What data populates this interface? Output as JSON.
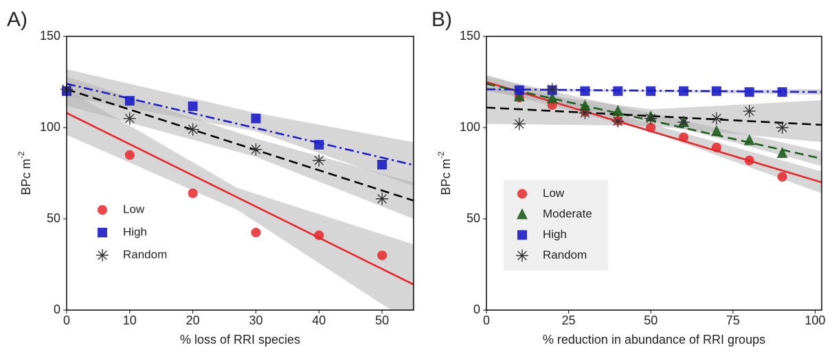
{
  "chart_data": [
    {
      "type": "scatter",
      "panel_label": "A)",
      "xlabel": "% loss of RRI species",
      "ylabel": "BPc m",
      "ylabel_sup": "-2",
      "xlim": [
        0,
        55
      ],
      "ylim": [
        0,
        150
      ],
      "xticks": [
        0,
        10,
        20,
        30,
        40,
        50
      ],
      "yticks": [
        0,
        50,
        100,
        150
      ],
      "legend": "lower left",
      "series": [
        {
          "name": "Low",
          "color": "#e8262a",
          "marker": "circle",
          "x": [
            10,
            20,
            30,
            40,
            50
          ],
          "values": [
            85,
            64,
            42.5,
            41,
            30
          ],
          "fit": {
            "x": [
              0,
              55
            ],
            "values": [
              108,
              14
            ],
            "dash": "solid"
          },
          "band": {
            "x": [
              0,
              27,
              55
            ],
            "lower": [
              96,
              55,
              -8
            ],
            "upper": [
              121,
              67,
              36
            ]
          }
        },
        {
          "name": "High",
          "color": "#1c1cc8",
          "marker": "square",
          "x": [
            0,
            10,
            20,
            30,
            40,
            50
          ],
          "values": [
            120,
            114.7,
            111.7,
            105,
            90.6,
            79.7
          ],
          "fit": {
            "x": [
              0,
              55
            ],
            "values": [
              124,
              79.5
            ],
            "dash": "dashdot"
          },
          "band": {
            "x": [
              0,
              30,
              55
            ],
            "lower": [
              117,
              98,
              68
            ],
            "upper": [
              132,
              108,
              92
            ]
          }
        },
        {
          "name": "Random",
          "color": "#333333",
          "marker": "asterisk",
          "x": [
            0,
            10,
            20,
            30,
            40,
            50
          ],
          "values": [
            121,
            105,
            99,
            88,
            82,
            61
          ],
          "fit": {
            "x": [
              0,
              55
            ],
            "values": [
              121,
              60
            ],
            "dash": "dashed"
          },
          "band": {
            "x": [
              0,
              30,
              55
            ],
            "lower": [
              112,
              84,
              50
            ],
            "upper": [
              128,
              94,
              70
            ]
          }
        }
      ]
    },
    {
      "type": "scatter",
      "panel_label": "B)",
      "xlabel": "% reduction in abundance of RRI groups",
      "ylabel": "BPc m",
      "ylabel_sup": "-2",
      "xlim": [
        0,
        102
      ],
      "ylim": [
        0,
        150
      ],
      "xticks": [
        0,
        25,
        50,
        75,
        100
      ],
      "yticks": [
        0,
        50,
        100,
        150
      ],
      "legend": "center left",
      "legend_frame": "#efefef",
      "series": [
        {
          "name": "Low",
          "color": "#e8262a",
          "marker": "circle",
          "x": [
            10,
            20,
            30,
            40,
            50,
            60,
            70,
            80,
            90
          ],
          "values": [
            116.5,
            112.4,
            108.6,
            103.8,
            100,
            94.7,
            89.1,
            82,
            73
          ],
          "fit": {
            "x": [
              0,
              102
            ],
            "values": [
              125,
              70
            ],
            "dash": "solid"
          },
          "band": {
            "x": [
              0,
              50,
              102
            ],
            "lower": [
              121,
              98,
              64
            ],
            "upper": [
              129,
              102,
              76
            ]
          }
        },
        {
          "name": "Moderate",
          "color": "#1e5e1e",
          "marker": "triangle",
          "x": [
            10,
            20,
            30,
            40,
            50,
            60,
            70,
            80,
            90
          ],
          "values": [
            117,
            116,
            112,
            109,
            106,
            103,
            98,
            93,
            86
          ],
          "fit": {
            "x": [
              0,
              102
            ],
            "values": [
              124,
              83
            ],
            "dash": "dashed"
          },
          "band": {
            "x": [
              0,
              50,
              102
            ],
            "lower": [
              120,
              104,
              79
            ],
            "upper": [
              128,
              108,
              87
            ]
          }
        },
        {
          "name": "High",
          "color": "#1c1cc8",
          "marker": "square",
          "x": [
            10,
            20,
            30,
            40,
            50,
            60,
            70,
            80,
            90
          ],
          "values": [
            120.5,
            120.5,
            120,
            120,
            120,
            120,
            120,
            119.5,
            119.5
          ],
          "fit": {
            "x": [
              0,
              102
            ],
            "values": [
              121,
              119.5
            ],
            "dash": "dashdot"
          },
          "band": {
            "x": [
              0,
              50,
              102
            ],
            "lower": [
              120,
              119.5,
              118
            ],
            "upper": [
              122,
              120.5,
              121
            ]
          }
        },
        {
          "name": "Random",
          "color": "#333333",
          "marker": "asterisk",
          "x": [
            10,
            20,
            30,
            40,
            50,
            60,
            70,
            80,
            90
          ],
          "values": [
            102,
            121,
            108,
            103.5,
            105,
            103,
            105,
            109,
            100
          ],
          "fit": {
            "x": [
              0,
              102
            ],
            "values": [
              111,
              101.5
            ],
            "dash": "dashed"
          },
          "band": {
            "x": [
              0,
              50,
              102
            ],
            "lower": [
              102,
              101,
              92
            ],
            "upper": [
              122,
              110,
              115
            ]
          }
        }
      ]
    }
  ]
}
